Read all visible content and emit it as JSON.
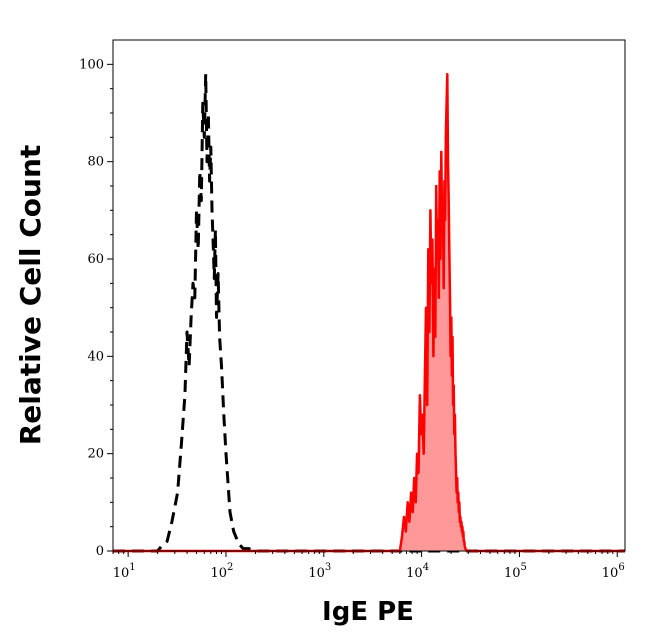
{
  "chart_data": {
    "type": "area",
    "title": "",
    "xlabel": "IgE PE",
    "ylabel": "Relative Cell Count",
    "x_scale": "log",
    "xlim": [
      7,
      1200000
    ],
    "ylim": [
      0,
      105
    ],
    "grid": false,
    "x_ticks": [
      {
        "value": 10,
        "base": "10",
        "exp": "1"
      },
      {
        "value": 100,
        "base": "10",
        "exp": "2"
      },
      {
        "value": 1000,
        "base": "10",
        "exp": "3"
      },
      {
        "value": 10000,
        "base": "10",
        "exp": "4"
      },
      {
        "value": 100000,
        "base": "10",
        "exp": "5"
      },
      {
        "value": 1000000,
        "base": "10",
        "exp": "6"
      }
    ],
    "y_ticks": [
      {
        "value": 0,
        "label": "0"
      },
      {
        "value": 20,
        "label": "20"
      },
      {
        "value": 40,
        "label": "40"
      },
      {
        "value": 60,
        "label": "60"
      },
      {
        "value": 80,
        "label": "80"
      },
      {
        "value": 100,
        "label": "100"
      }
    ],
    "series": [
      {
        "style": "dashed",
        "color": "#000000",
        "fill": "none",
        "x": [
          7,
          20,
          22,
          25,
          28,
          32,
          35,
          38,
          40,
          42,
          44,
          46,
          48,
          50,
          52,
          54,
          56,
          58,
          60,
          62,
          64,
          66,
          68,
          70,
          72,
          74,
          76,
          78,
          80,
          83,
          86,
          90,
          95,
          100,
          110,
          120,
          135,
          150,
          170,
          200,
          1200000
        ],
        "y": [
          0,
          0,
          1,
          2,
          6,
          12,
          22,
          32,
          45,
          38,
          48,
          55,
          52,
          70,
          62,
          78,
          72,
          92,
          85,
          98,
          80,
          90,
          76,
          83,
          70,
          63,
          56,
          66,
          48,
          57,
          44,
          38,
          28,
          20,
          8,
          4,
          1.5,
          0.5,
          0.5,
          0,
          0
        ]
      },
      {
        "style": "solid",
        "color": "#ff0000",
        "fill": "#ff9999",
        "x": [
          7,
          6000,
          6300,
          6600,
          6900,
          7200,
          7500,
          7800,
          8100,
          8400,
          8700,
          9000,
          9300,
          9600,
          9900,
          10200,
          10500,
          10800,
          11100,
          11400,
          11700,
          12000,
          12300,
          12600,
          12900,
          13200,
          13500,
          13800,
          14100,
          14400,
          14700,
          15000,
          15300,
          15600,
          15900,
          16200,
          16500,
          16800,
          17100,
          17400,
          17700,
          18000,
          18300,
          18600,
          18900,
          19200,
          19500,
          19800,
          20100,
          20400,
          20700,
          21000,
          21300,
          21600,
          21900,
          22200,
          22500,
          22800,
          23100,
          23400,
          23700,
          24000,
          24300,
          24600,
          24900,
          25200,
          25500,
          25800,
          26100,
          26400,
          26700,
          27000,
          27300,
          27600,
          28000,
          29000,
          30000,
          1200000
        ],
        "y": [
          0,
          0,
          3,
          7,
          4,
          10,
          6,
          12,
          8,
          15,
          10,
          20,
          16,
          32,
          24,
          28,
          20,
          36,
          50,
          30,
          62,
          45,
          70,
          55,
          64,
          40,
          58,
          44,
          75,
          60,
          68,
          52,
          78,
          60,
          82,
          66,
          72,
          54,
          76,
          68,
          86,
          92,
          98,
          80,
          72,
          62,
          52,
          40,
          48,
          36,
          44,
          30,
          34,
          24,
          28,
          20,
          16,
          12,
          15,
          10,
          12,
          8,
          10,
          6,
          7,
          5,
          6,
          4,
          5,
          3,
          4,
          2,
          2,
          1,
          0.5,
          0,
          0,
          0
        ]
      }
    ]
  }
}
